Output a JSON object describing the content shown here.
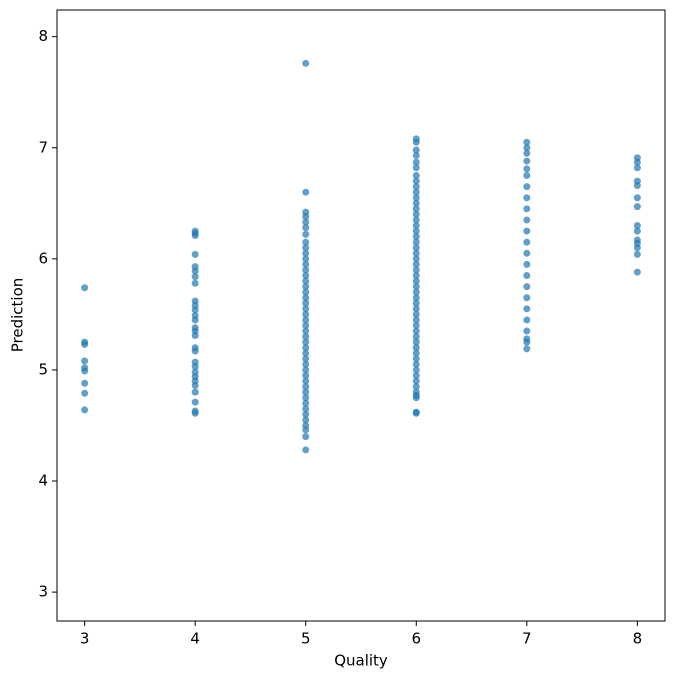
{
  "chart_data": {
    "type": "scatter",
    "xlabel": "Quality",
    "ylabel": "Prediction",
    "color": "#1f77b4",
    "xlim": [
      2.75,
      8.25
    ],
    "ylim": [
      2.74,
      8.24
    ],
    "xticks": [
      3,
      4,
      5,
      6,
      7,
      8
    ],
    "yticks": [
      3,
      4,
      5,
      6,
      7,
      8
    ],
    "x": [
      3,
      3,
      3,
      3,
      3,
      3,
      3,
      3,
      3,
      4,
      4,
      4,
      4,
      4,
      4,
      4,
      4,
      4,
      4,
      4,
      4,
      4,
      4,
      4,
      4,
      4,
      4,
      4,
      4,
      4,
      4,
      4,
      4,
      4,
      4,
      4,
      4,
      5,
      5,
      5,
      5,
      5,
      5,
      5,
      5,
      5,
      5,
      5,
      5,
      5,
      5,
      5,
      5,
      5,
      5,
      5,
      5,
      5,
      5,
      5,
      5,
      5,
      5,
      5,
      5,
      5,
      5,
      5,
      5,
      5,
      5,
      5,
      5,
      5,
      5,
      5,
      5,
      5,
      5,
      5,
      5,
      6,
      6,
      6,
      6,
      6,
      6,
      6,
      6,
      6,
      6,
      6,
      6,
      6,
      6,
      6,
      6,
      6,
      6,
      6,
      6,
      6,
      6,
      6,
      6,
      6,
      6,
      6,
      6,
      6,
      6,
      6,
      6,
      6,
      6,
      6,
      6,
      6,
      6,
      6,
      6,
      6,
      6,
      6,
      6,
      6,
      6,
      6,
      6,
      6,
      6,
      7,
      7,
      7,
      7,
      7,
      7,
      7,
      7,
      7,
      7,
      7,
      7,
      7,
      7,
      7,
      7,
      7,
      7,
      7,
      7,
      7,
      7,
      7,
      8,
      8,
      8,
      8,
      8,
      8,
      8,
      8,
      8,
      8,
      8,
      8,
      8,
      8
    ],
    "values": [
      5.74,
      5.25,
      5.23,
      5.08,
      5.02,
      4.99,
      4.88,
      4.79,
      4.64,
      6.25,
      6.23,
      6.21,
      6.04,
      5.93,
      5.89,
      5.84,
      5.78,
      5.62,
      5.58,
      5.54,
      5.49,
      5.45,
      5.38,
      5.35,
      5.31,
      5.2,
      5.17,
      5.07,
      5.03,
      4.98,
      4.94,
      4.9,
      4.86,
      4.8,
      4.71,
      4.63,
      4.61,
      7.76,
      6.6,
      6.42,
      6.38,
      6.33,
      6.28,
      6.22,
      6.15,
      6.1,
      6.05,
      6.0,
      5.95,
      5.9,
      5.85,
      5.8,
      5.75,
      5.7,
      5.65,
      5.6,
      5.55,
      5.5,
      5.45,
      5.4,
      5.35,
      5.3,
      5.25,
      5.2,
      5.15,
      5.1,
      5.05,
      5.0,
      4.95,
      4.9,
      4.85,
      4.8,
      4.75,
      4.7,
      4.65,
      4.6,
      4.55,
      4.5,
      4.46,
      4.4,
      4.28,
      7.08,
      7.05,
      6.98,
      6.93,
      6.87,
      6.82,
      6.75,
      6.7,
      6.65,
      6.6,
      6.55,
      6.5,
      6.45,
      6.4,
      6.35,
      6.3,
      6.25,
      6.2,
      6.15,
      6.1,
      6.05,
      6.0,
      5.95,
      5.9,
      5.85,
      5.8,
      5.75,
      5.7,
      5.65,
      5.6,
      5.55,
      5.5,
      5.45,
      5.4,
      5.35,
      5.3,
      5.25,
      5.2,
      5.15,
      5.1,
      5.05,
      5.0,
      4.95,
      4.9,
      4.85,
      4.8,
      4.77,
      4.75,
      4.62,
      4.61,
      7.05,
      7.0,
      6.95,
      6.88,
      6.81,
      6.75,
      6.65,
      6.55,
      6.45,
      6.35,
      6.25,
      6.15,
      6.05,
      5.95,
      5.85,
      5.75,
      5.65,
      5.55,
      5.45,
      5.35,
      5.28,
      5.25,
      5.19,
      6.91,
      6.87,
      6.82,
      6.7,
      6.66,
      6.55,
      6.47,
      6.3,
      6.25,
      6.17,
      6.14,
      6.1,
      6.04,
      5.88
    ]
  }
}
